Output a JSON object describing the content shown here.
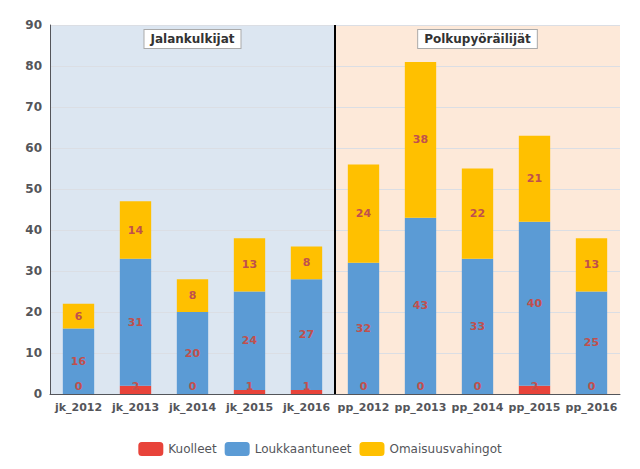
{
  "chart_data": {
    "type": "bar",
    "categories": [
      "jk_2012",
      "jk_2013",
      "jk_2014",
      "jk_2015",
      "jk_2016",
      "pp_2012",
      "pp_2013",
      "pp_2014",
      "pp_2015",
      "pp_2016"
    ],
    "series": [
      {
        "name": "Kuolleet",
        "color": "#e8433a",
        "values": [
          0,
          2,
          0,
          1,
          1,
          0,
          0,
          0,
          2,
          0
        ]
      },
      {
        "name": "Loukkaantuneet",
        "color": "#5b9bd5",
        "values": [
          16,
          31,
          20,
          24,
          27,
          32,
          43,
          33,
          40,
          25
        ]
      },
      {
        "name": "Omaisuusvahingot",
        "color": "#ffc000",
        "values": [
          6,
          14,
          8,
          13,
          8,
          24,
          38,
          22,
          21,
          13
        ]
      }
    ],
    "annotations": [
      {
        "text": "Jalankulkijat",
        "from": "jk_2012",
        "to": "jk_2016"
      },
      {
        "text": "Polkupyöräilijät",
        "from": "pp_2012",
        "to": "pp_2016"
      }
    ],
    "ylim": [
      0,
      90
    ],
    "yticks": [
      0,
      10,
      20,
      30,
      40,
      50,
      60,
      70,
      80,
      90
    ],
    "stacked": true,
    "data_labels": true,
    "grid": true,
    "legend": "bottom"
  }
}
